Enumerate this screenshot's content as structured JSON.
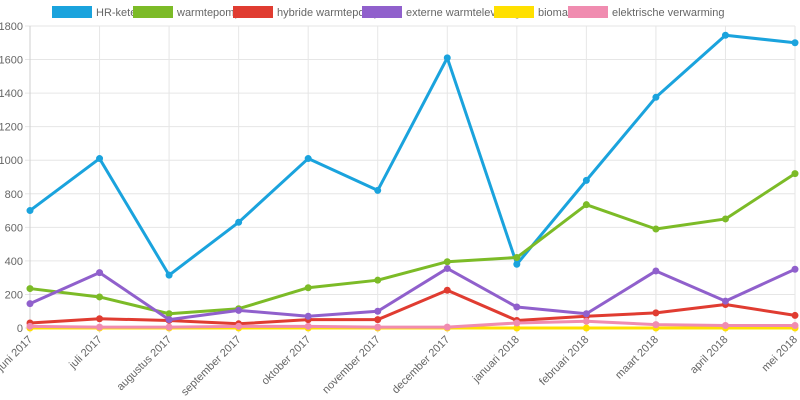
{
  "chart_data": {
    "type": "line",
    "title": "",
    "xlabel": "",
    "ylabel": "",
    "ylim": [
      0,
      1800
    ],
    "yticks": [
      0,
      200,
      400,
      600,
      800,
      1000,
      1200,
      1400,
      1600,
      1800
    ],
    "grid": true,
    "legend_position": "top",
    "categories": [
      "juni 2017",
      "juli 2017",
      "augustus 2017",
      "september 2017",
      "oktober 2017",
      "november 2017",
      "december 2017",
      "januari 2018",
      "februari 2018",
      "maart 2018",
      "april 2018",
      "mei 2018"
    ],
    "series": [
      {
        "name": "HR-ketel",
        "color": "#1aa3dd",
        "values": [
          700,
          1010,
          315,
          630,
          1010,
          820,
          1610,
          380,
          880,
          1375,
          1745,
          1700
        ]
      },
      {
        "name": "warmtepomp",
        "color": "#7cbb27",
        "values": [
          235,
          185,
          85,
          115,
          240,
          285,
          395,
          420,
          735,
          590,
          650,
          920
        ]
      },
      {
        "name": "hybride warmtepomp",
        "color": "#e03c31",
        "values": [
          30,
          55,
          45,
          25,
          50,
          50,
          225,
          45,
          70,
          90,
          140,
          75
        ]
      },
      {
        "name": "externe warmtelevering",
        "color": "#9060cc",
        "values": [
          145,
          330,
          50,
          105,
          70,
          100,
          355,
          125,
          85,
          340,
          160,
          350
        ]
      },
      {
        "name": "biomassa",
        "color": "#ffe000",
        "values": [
          0,
          0,
          0,
          0,
          0,
          0,
          0,
          0,
          0,
          0,
          0,
          0
        ]
      },
      {
        "name": "elektrische verwarming",
        "color": "#f08cb0",
        "values": [
          10,
          5,
          5,
          10,
          10,
          5,
          5,
          30,
          40,
          20,
          15,
          15
        ]
      }
    ]
  }
}
